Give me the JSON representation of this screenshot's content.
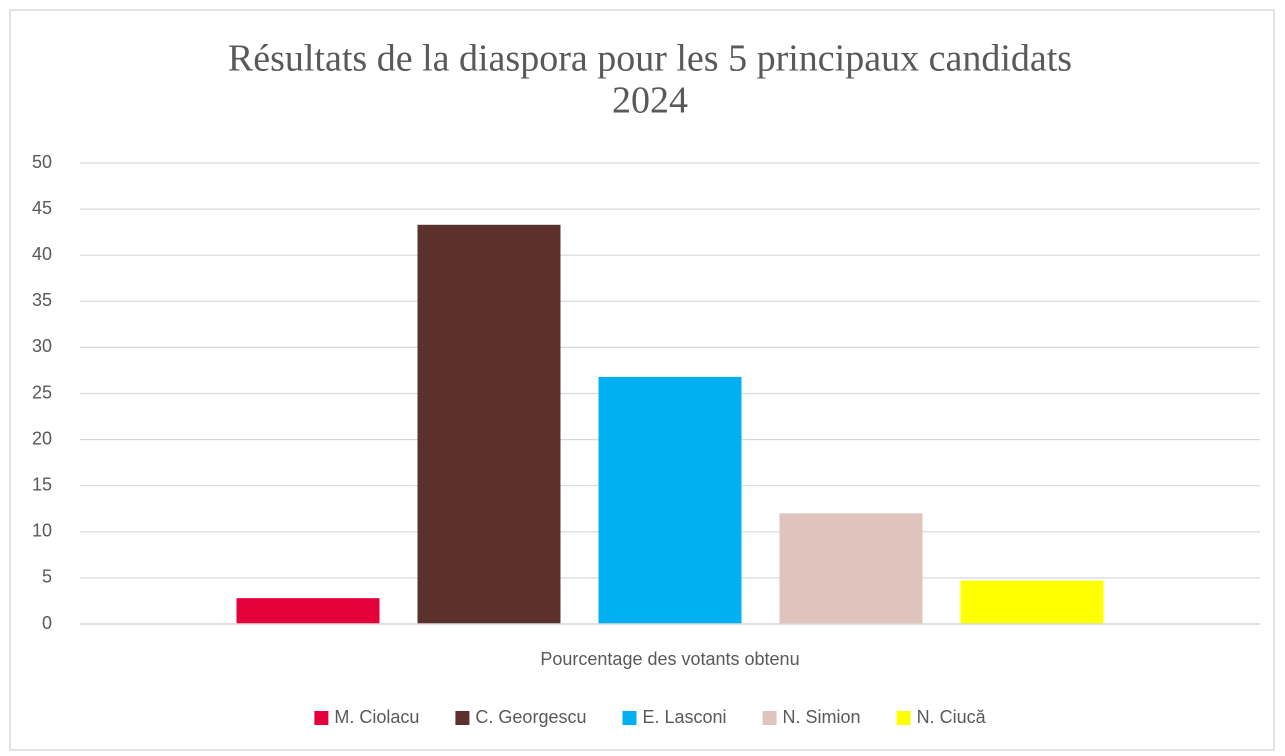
{
  "chart_data": {
    "type": "bar",
    "title": [
      "Résultats de la diaspora pour les 5 principaux candidats",
      "2024"
    ],
    "categories": [
      "Pourcentage des votants obtenu"
    ],
    "series": [
      {
        "name": "M. Ciolacu",
        "color": "#e4003b",
        "values": [
          2.8
        ]
      },
      {
        "name": "C. Georgescu",
        "color": "#5c302c",
        "values": [
          43.3
        ]
      },
      {
        "name": "E. Lasconi",
        "color": "#00b0f0",
        "values": [
          26.8
        ]
      },
      {
        "name": "N. Simion",
        "color": "#dfc3bd",
        "values": [
          12.0
        ]
      },
      {
        "name": "N. Ciucă",
        "color": "#ffff00",
        "values": [
          4.7
        ]
      }
    ],
    "ylim": [
      0,
      50
    ],
    "yticks": [
      0,
      5,
      10,
      15,
      20,
      25,
      30,
      35,
      40,
      45,
      50
    ],
    "grid": true,
    "legend": "bottom"
  }
}
